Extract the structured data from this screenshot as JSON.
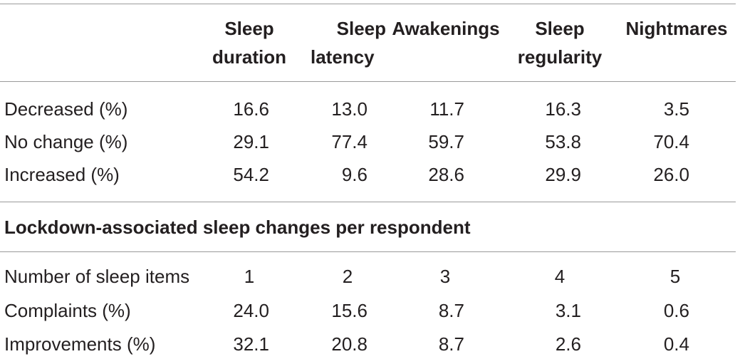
{
  "columns": [
    "Sleep duration",
    "Sleep latency",
    "Awakenings",
    "Sleep regularity",
    "Nightmares"
  ],
  "header_lines": [
    [
      "Sleep",
      "duration"
    ],
    [
      "Sleep",
      "latency"
    ],
    [
      "Awakenings"
    ],
    [
      "Sleep",
      "regularity"
    ],
    [
      "Nightmares"
    ]
  ],
  "changes": [
    {
      "label": "Decreased (%)",
      "values": [
        "16.6",
        "13.0",
        "11.7",
        "16.3",
        "3.5"
      ]
    },
    {
      "label": "No change (%)",
      "values": [
        "29.1",
        "77.4",
        "59.7",
        "53.8",
        "70.4"
      ]
    },
    {
      "label": "Increased (%)",
      "values": [
        "54.2",
        "9.6",
        "28.6",
        "29.9",
        "26.0"
      ]
    }
  ],
  "section_title": "Lockdown-associated sleep changes per respondent",
  "per_respondent": [
    {
      "label": "Number of sleep items",
      "values": [
        "1",
        "2",
        "3",
        "4",
        "5"
      ]
    },
    {
      "label": "Complaints (%)",
      "values": [
        "24.0",
        "15.6",
        "8.7",
        "3.1",
        "0.6"
      ]
    },
    {
      "label": "Improvements (%)",
      "values": [
        "32.1",
        "20.8",
        "8.7",
        "2.6",
        "0.4"
      ]
    }
  ]
}
